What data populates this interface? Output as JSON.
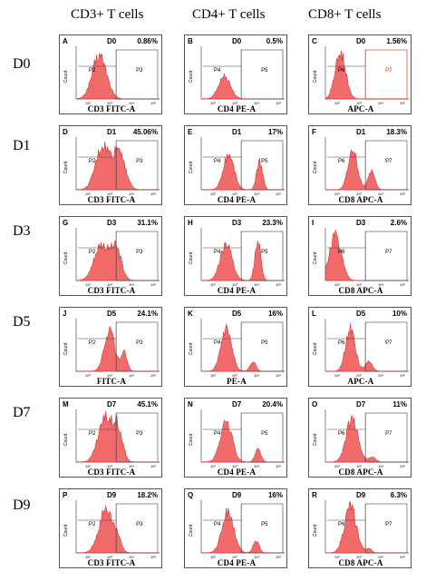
{
  "columns": [
    "CD3+ T cells",
    "CD4+ T cells",
    "CD8+ T cells"
  ],
  "rows": [
    "D0",
    "D1",
    "D3",
    "D5",
    "D7",
    "D9"
  ],
  "colors": {
    "histogram_fill": "#f26b6b",
    "histogram_stroke": "#cc2020",
    "gate_line": "#444444",
    "gate_red": "#e02020"
  },
  "chart_data": [
    {
      "type": "area",
      "label": "A",
      "day": "D0",
      "percent": "0.86%",
      "xlabel": "CD3 FITC-A",
      "ylabel": "Count",
      "gates": [
        "P2",
        "P3"
      ],
      "peaks": [
        {
          "x": 0.28,
          "w": 0.12,
          "h": 0.85
        }
      ]
    },
    {
      "type": "area",
      "label": "B",
      "day": "D0",
      "percent": "0.5%",
      "xlabel": "CD4 PE-A",
      "ylabel": "Count",
      "gates": [
        "P4",
        "P5"
      ],
      "peaks": [
        {
          "x": 0.28,
          "w": 0.1,
          "h": 0.45
        }
      ]
    },
    {
      "type": "area",
      "label": "C",
      "day": "D0",
      "percent": "1.56%",
      "xlabel": "APC-A",
      "ylabel": "Count",
      "gates": [
        "P6",
        "P7"
      ],
      "peaks": [
        {
          "x": 0.18,
          "w": 0.09,
          "h": 0.9
        }
      ]
    },
    {
      "type": "area",
      "label": "D",
      "day": "D1",
      "percent": "45.06%",
      "xlabel": "CD3 FITC-A",
      "ylabel": "Count",
      "gates": [
        "P2",
        "P3"
      ],
      "peaks": [
        {
          "x": 0.32,
          "w": 0.12,
          "h": 0.85
        },
        {
          "x": 0.52,
          "w": 0.1,
          "h": 0.75
        }
      ]
    },
    {
      "type": "area",
      "label": "E",
      "day": "D1",
      "percent": "17%",
      "xlabel": "CD4 PE-A",
      "ylabel": "Count",
      "gates": [
        "P4",
        "P5"
      ],
      "peaks": [
        {
          "x": 0.33,
          "w": 0.09,
          "h": 0.7
        },
        {
          "x": 0.7,
          "w": 0.05,
          "h": 0.55
        }
      ]
    },
    {
      "type": "area",
      "label": "F",
      "day": "D1",
      "percent": "18.3%",
      "xlabel": "CD8 APC-A",
      "ylabel": "Count",
      "gates": [
        "P6",
        "P7"
      ],
      "peaks": [
        {
          "x": 0.33,
          "w": 0.08,
          "h": 0.75
        },
        {
          "x": 0.55,
          "w": 0.06,
          "h": 0.35
        }
      ]
    },
    {
      "type": "area",
      "label": "G",
      "day": "D3",
      "percent": "31.1%",
      "xlabel": "CD3 FITC-A",
      "ylabel": "Count",
      "gates": [
        "P2",
        "P3"
      ],
      "peaks": [
        {
          "x": 0.3,
          "w": 0.12,
          "h": 0.7
        },
        {
          "x": 0.48,
          "w": 0.09,
          "h": 0.6
        }
      ]
    },
    {
      "type": "area",
      "label": "H",
      "day": "D3",
      "percent": "23.3%",
      "xlabel": "CD4 PE-A",
      "ylabel": "Count",
      "gates": [
        "P4",
        "P5"
      ],
      "peaks": [
        {
          "x": 0.3,
          "w": 0.1,
          "h": 0.7
        },
        {
          "x": 0.68,
          "w": 0.05,
          "h": 0.75
        }
      ]
    },
    {
      "type": "area",
      "label": "I",
      "day": "D3",
      "percent": "2.6%",
      "xlabel": "CD8 APC-A",
      "ylabel": "Count",
      "gates": [
        "P6",
        "P7"
      ],
      "peaks": [
        {
          "x": 0.12,
          "w": 0.1,
          "h": 0.9
        }
      ]
    },
    {
      "type": "area",
      "label": "J",
      "day": "D5",
      "percent": "24.1%",
      "xlabel": "FITC-A",
      "ylabel": "Count",
      "gates": [
        "P2",
        "P3"
      ],
      "peaks": [
        {
          "x": 0.4,
          "w": 0.09,
          "h": 0.82
        },
        {
          "x": 0.58,
          "w": 0.05,
          "h": 0.35
        }
      ]
    },
    {
      "type": "area",
      "label": "K",
      "day": "D5",
      "percent": "16%",
      "xlabel": "PE-A",
      "ylabel": "Count",
      "gates": [
        "P4",
        "P5"
      ],
      "peaks": [
        {
          "x": 0.3,
          "w": 0.09,
          "h": 0.8
        },
        {
          "x": 0.62,
          "w": 0.05,
          "h": 0.2
        }
      ]
    },
    {
      "type": "area",
      "label": "L",
      "day": "D5",
      "percent": "10%",
      "xlabel": "APC-A",
      "ylabel": "Count",
      "gates": [
        "P6",
        "P7"
      ],
      "peaks": [
        {
          "x": 0.3,
          "w": 0.08,
          "h": 0.85
        },
        {
          "x": 0.52,
          "w": 0.06,
          "h": 0.2
        }
      ]
    },
    {
      "type": "area",
      "label": "M",
      "day": "D7",
      "percent": "45.1%",
      "xlabel": "CD3 FITC-A",
      "ylabel": "Count",
      "gates": [
        "P2",
        "P3"
      ],
      "peaks": [
        {
          "x": 0.35,
          "w": 0.12,
          "h": 0.85
        },
        {
          "x": 0.5,
          "w": 0.08,
          "h": 0.6
        }
      ]
    },
    {
      "type": "area",
      "label": "N",
      "day": "D7",
      "percent": "20.4%",
      "xlabel": "CD4 PE-A",
      "ylabel": "Count",
      "gates": [
        "P4",
        "P5"
      ],
      "peaks": [
        {
          "x": 0.3,
          "w": 0.1,
          "h": 0.8
        },
        {
          "x": 0.68,
          "w": 0.05,
          "h": 0.25
        }
      ]
    },
    {
      "type": "area",
      "label": "O",
      "day": "D7",
      "percent": "11%",
      "xlabel": "CD8 APC-A",
      "ylabel": "Count",
      "gates": [
        "P6",
        "P7"
      ],
      "peaks": [
        {
          "x": 0.32,
          "w": 0.1,
          "h": 0.85
        },
        {
          "x": 0.56,
          "w": 0.06,
          "h": 0.1
        }
      ]
    },
    {
      "type": "area",
      "label": "P",
      "day": "D9",
      "percent": "18.2%",
      "xlabel": "CD3 FITC-A",
      "ylabel": "Count",
      "gates": [
        "P2",
        "P3"
      ],
      "peaks": [
        {
          "x": 0.36,
          "w": 0.12,
          "h": 0.85
        },
        {
          "x": 0.5,
          "w": 0.06,
          "h": 0.2
        }
      ]
    },
    {
      "type": "area",
      "label": "Q",
      "day": "D9",
      "percent": "16%",
      "xlabel": "CD4 PE-A",
      "ylabel": "Count",
      "gates": [
        "P4",
        "P5"
      ],
      "peaks": [
        {
          "x": 0.32,
          "w": 0.1,
          "h": 0.8
        },
        {
          "x": 0.66,
          "w": 0.05,
          "h": 0.25
        }
      ]
    },
    {
      "type": "area",
      "label": "R",
      "day": "D9",
      "percent": "6.3%",
      "xlabel": "CD8 APC-A",
      "ylabel": "Count",
      "gates": [
        "P6",
        "P7"
      ],
      "peaks": [
        {
          "x": 0.3,
          "w": 0.1,
          "h": 0.9
        },
        {
          "x": 0.52,
          "w": 0.05,
          "h": 0.08
        }
      ]
    }
  ]
}
